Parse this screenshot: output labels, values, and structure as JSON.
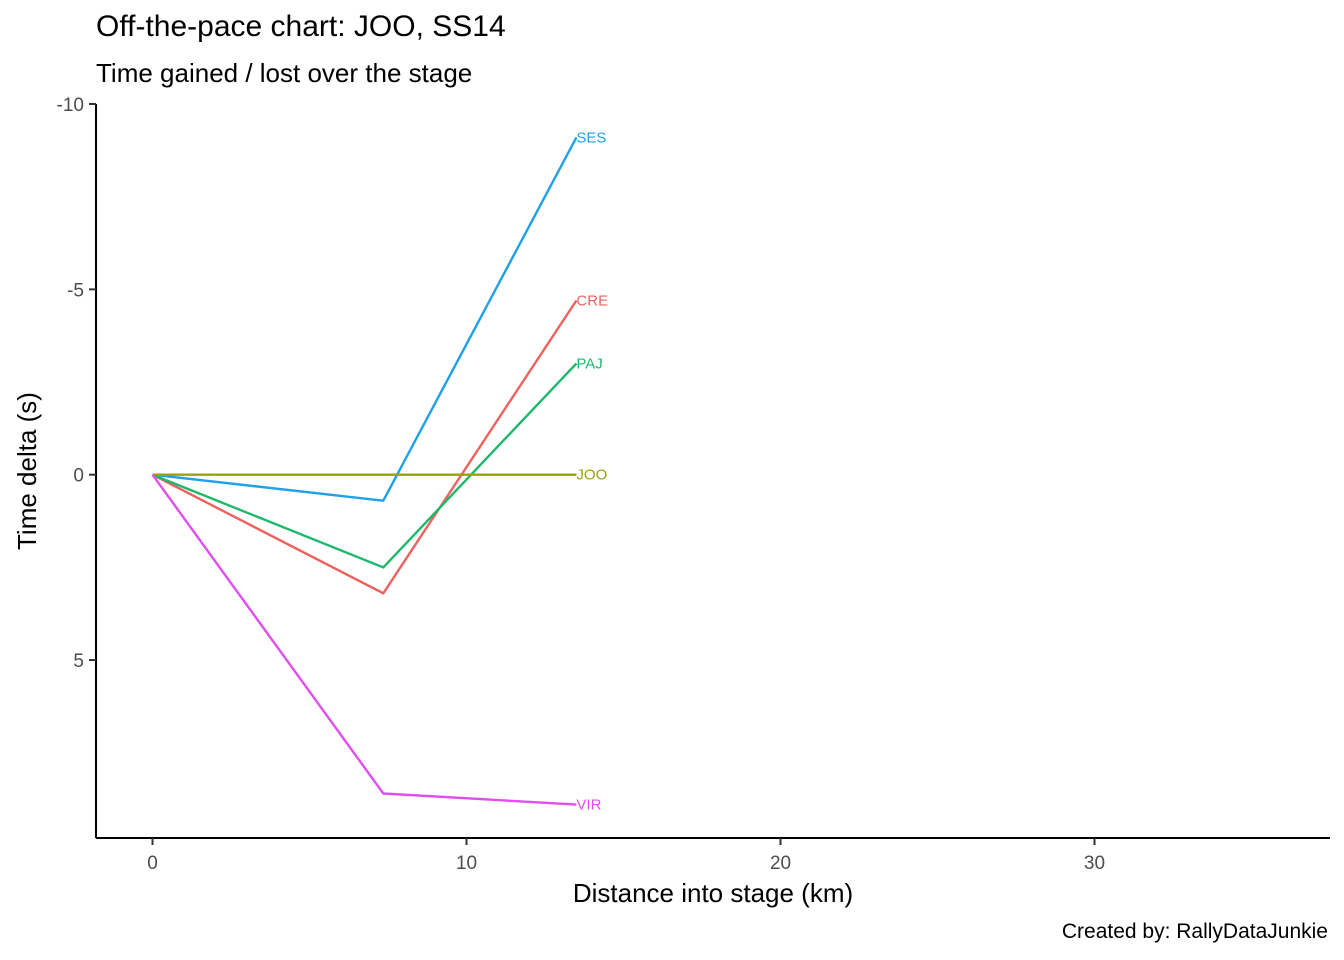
{
  "title": "Off-the-pace chart: JOO, SS14",
  "subtitle": "Time gained / lost over the stage",
  "caption": "Created by: RallyDataJunkie",
  "chart_data": {
    "type": "line",
    "xlabel": "Distance into stage (km)",
    "ylabel": "Time delta (s)",
    "xlim": [
      -1.8,
      37.5
    ],
    "ylim": [
      -10,
      9.8
    ],
    "y_reversed": true,
    "x_ticks": [
      0,
      10,
      20,
      30
    ],
    "y_ticks": [
      -10,
      -5,
      0,
      5
    ],
    "y_tick_labels": [
      "-10",
      "-5",
      "0",
      "5"
    ],
    "grid": false,
    "legend": "none (series labelled at line ends)",
    "series": [
      {
        "name": "SES",
        "color": "#1fa1e9",
        "x": [
          0,
          7.35,
          13.5
        ],
        "y": [
          0,
          0.7,
          -9.1
        ]
      },
      {
        "name": "CRE",
        "color": "#eb625f",
        "x": [
          0,
          7.35,
          13.5
        ],
        "y": [
          0,
          3.2,
          -4.7
        ]
      },
      {
        "name": "PAJ",
        "color": "#1db86b",
        "x": [
          0,
          7.35,
          13.5
        ],
        "y": [
          0,
          2.5,
          -3.0
        ]
      },
      {
        "name": "JOO",
        "color": "#9aa10e",
        "x": [
          0,
          7.35,
          13.5
        ],
        "y": [
          0,
          0,
          0
        ]
      },
      {
        "name": "VIR",
        "color": "#e14ef0",
        "x": [
          0,
          7.35,
          13.5
        ],
        "y": [
          0,
          8.6,
          8.9
        ]
      }
    ]
  }
}
